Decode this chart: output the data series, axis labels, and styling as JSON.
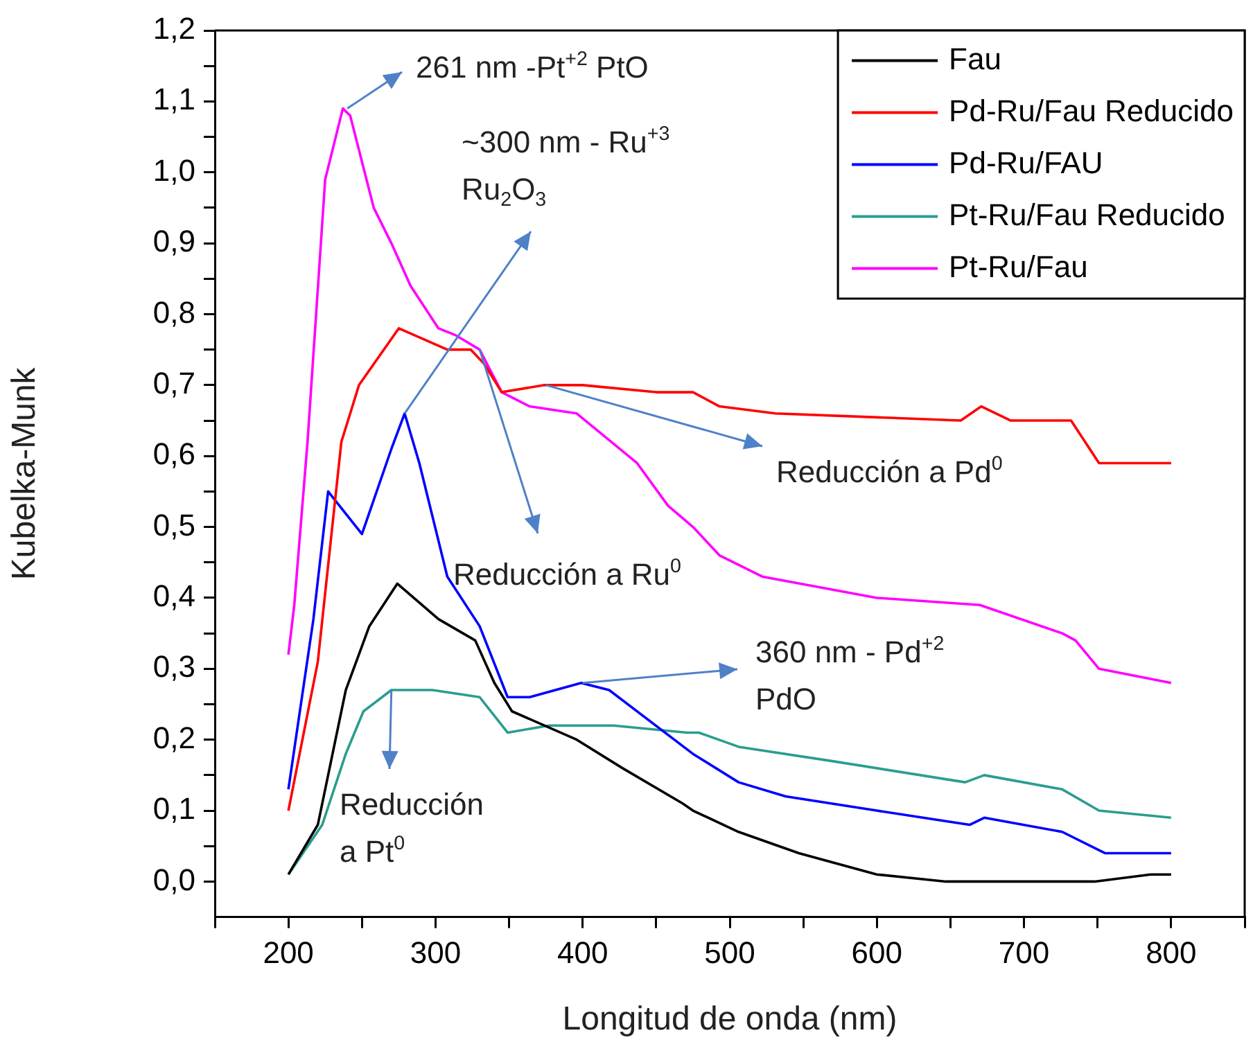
{
  "chart_data": {
    "type": "line",
    "xlabel": "Longitud de onda (nm)",
    "ylabel": "Kubelka-Munk",
    "xlim": [
      150,
      850
    ],
    "ylim": [
      -0.05,
      1.2
    ],
    "xticks": [
      {
        "value": 150,
        "label": null
      },
      200,
      {
        "value": 250,
        "label": null
      },
      300,
      {
        "value": 350,
        "label": null
      },
      400,
      {
        "value": 450,
        "label": null
      },
      500,
      {
        "value": 550,
        "label": null
      },
      600,
      {
        "value": 650,
        "label": null
      },
      700,
      {
        "value": 750,
        "label": null
      },
      800,
      {
        "value": 850,
        "label": null
      }
    ],
    "yticks": [
      {
        "value": 0,
        "label": "0,0"
      },
      {
        "value": 0.05,
        "label": null
      },
      {
        "value": 0.1,
        "label": "0,1"
      },
      {
        "value": 0.15,
        "label": null
      },
      {
        "value": 0.2,
        "label": "0,2"
      },
      {
        "value": 0.25,
        "label": null
      },
      {
        "value": 0.3,
        "label": "0,3"
      },
      {
        "value": 0.35,
        "label": null
      },
      {
        "value": 0.4,
        "label": "0,4"
      },
      {
        "value": 0.45,
        "label": null
      },
      {
        "value": 0.5,
        "label": "0,5"
      },
      {
        "value": 0.55,
        "label": null
      },
      {
        "value": 0.6,
        "label": "0,6"
      },
      {
        "value": 0.65,
        "label": null
      },
      {
        "value": 0.7,
        "label": "0,7"
      },
      {
        "value": 0.75,
        "label": null
      },
      {
        "value": 0.8,
        "label": "0,8"
      },
      {
        "value": 0.85,
        "label": null
      },
      {
        "value": 0.9,
        "label": "0,9"
      },
      {
        "value": 0.95,
        "label": null
      },
      {
        "value": 1.0,
        "label": "1,0"
      },
      {
        "value": 1.05,
        "label": null
      },
      {
        "value": 1.1,
        "label": "1,1"
      },
      {
        "value": 1.15,
        "label": null
      },
      {
        "value": 1.2,
        "label": "1,2"
      }
    ],
    "grid": false,
    "legend": "top right",
    "marker": "none",
    "line_style": "solid",
    "series": [
      {
        "name": "Fau",
        "color": "#000000",
        "x": [
          200,
          220,
          239,
          255,
          274,
          302,
          327,
          340,
          352,
          396,
          427,
          468,
          475,
          506,
          547,
          600,
          647,
          748,
          786,
          800
        ],
        "values": [
          0.01,
          0.08,
          0.27,
          0.36,
          0.42,
          0.37,
          0.34,
          0.28,
          0.24,
          0.2,
          0.16,
          0.11,
          0.1,
          0.07,
          0.04,
          0.01,
          0.0,
          0.0,
          0.01,
          0.01
        ]
      },
      {
        "name": "Pd-Ru/Fau Reducido",
        "color": "#ff0000",
        "x": [
          200,
          220,
          236,
          248,
          275,
          308,
          324,
          333,
          345,
          374,
          400,
          450,
          475,
          493,
          531,
          657,
          671,
          691,
          732,
          751,
          800
        ],
        "values": [
          0.1,
          0.31,
          0.62,
          0.7,
          0.78,
          0.75,
          0.75,
          0.73,
          0.69,
          0.7,
          0.7,
          0.69,
          0.69,
          0.67,
          0.66,
          0.65,
          0.67,
          0.65,
          0.65,
          0.59,
          0.59
        ]
      },
      {
        "name": "Pd-Ru/FAU",
        "color": "#0000ff",
        "x": [
          200,
          217,
          227,
          250,
          270,
          279,
          289,
          308,
          330,
          349,
          364,
          399,
          418,
          475,
          506,
          538,
          600,
          663,
          673,
          726,
          755,
          800
        ],
        "values": [
          0.13,
          0.37,
          0.55,
          0.49,
          0.61,
          0.66,
          0.59,
          0.43,
          0.36,
          0.26,
          0.26,
          0.28,
          0.27,
          0.18,
          0.14,
          0.12,
          0.1,
          0.08,
          0.09,
          0.07,
          0.04,
          0.04
        ]
      },
      {
        "name": "Pt-Ru/Fau Reducido",
        "color": "#2a9d8f",
        "x": [
          200,
          223,
          239,
          251,
          270,
          298,
          330,
          349,
          377,
          421,
          471,
          479,
          506,
          569,
          660,
          673,
          726,
          751,
          800
        ],
        "values": [
          0.01,
          0.08,
          0.18,
          0.24,
          0.27,
          0.27,
          0.26,
          0.21,
          0.22,
          0.22,
          0.21,
          0.21,
          0.19,
          0.17,
          0.14,
          0.15,
          0.13,
          0.1,
          0.09
        ]
      },
      {
        "name": "Pt-Ru/Fau",
        "color": "#ff00ff",
        "x": [
          200,
          204,
          213,
          225,
          237,
          242,
          258,
          270,
          283,
          302,
          314,
          330,
          345,
          364,
          396,
          437,
          458,
          475,
          493,
          522,
          600,
          670,
          726,
          735,
          751,
          800
        ],
        "values": [
          0.32,
          0.39,
          0.62,
          0.99,
          1.09,
          1.08,
          0.95,
          0.9,
          0.84,
          0.78,
          0.77,
          0.75,
          0.69,
          0.67,
          0.66,
          0.59,
          0.53,
          0.5,
          0.46,
          0.43,
          0.4,
          0.39,
          0.35,
          0.34,
          0.3,
          0.28
        ]
      }
    ],
    "annotations": [
      {
        "text": "261 nm -Pt$^{+2}$ PtO",
        "x": 240,
        "y": 1.09
      },
      "~300 nm - Ru$^{+3}$",
      {
        "text": "Ru$_{2}$O$_{3}$",
        "x": 279,
        "y": 0.66
      },
      {
        "text": "Reducción a Ru$^{0}$",
        "x": 330,
        "y": 0.75
      },
      {
        "text": "Reducción a Pd$^{0}$",
        "x": 375,
        "y": 0.7
      },
      {
        "text": "360 nm - Pd$^{+2}$",
        "x": 400,
        "y": 0.28
      },
      "PdO",
      {
        "text": "Reducción a Pt$^{0}$",
        "x": 270,
        "y": 0.27
      }
    ]
  }
}
